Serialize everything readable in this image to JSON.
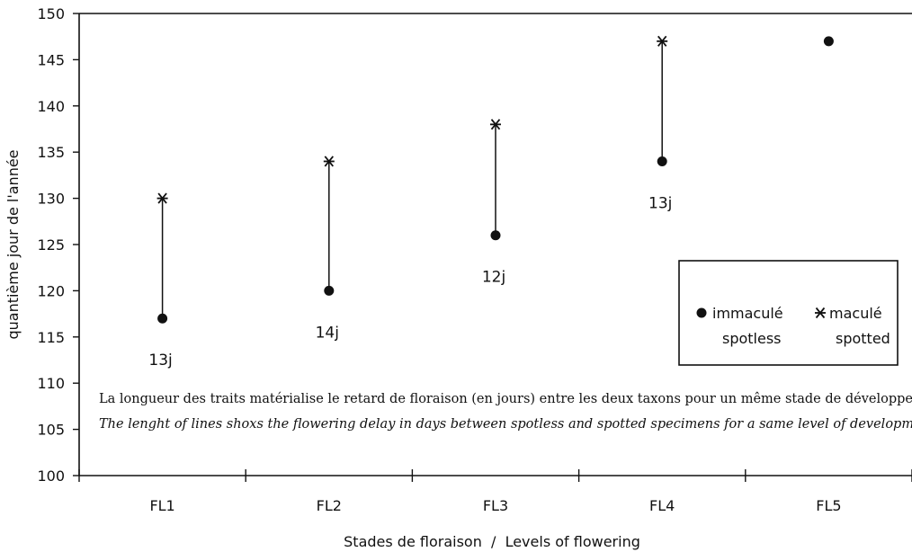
{
  "chart_data": {
    "type": "scatter",
    "title": "",
    "xlabel": "Stades de floraison  /  Levels of flowering",
    "ylabel": "quantième jour de l'année",
    "categories": [
      "FL1",
      "FL2",
      "FL3",
      "FL4",
      "FL5"
    ],
    "ylim": [
      100,
      150
    ],
    "yticks": [
      "100",
      "105",
      "110",
      "115",
      "120",
      "125",
      "130",
      "135",
      "140",
      "145",
      "150"
    ],
    "grid": false,
    "legend_position": "right",
    "series": [
      {
        "name": "immaculé spotless",
        "name_fr": "immaculé",
        "name_en": "spotless",
        "marker": "dot",
        "values": [
          117,
          120,
          126,
          134,
          147
        ]
      },
      {
        "name": "maculé spotted",
        "name_fr": "maculé",
        "name_en": "spotted",
        "marker": "asterisk",
        "values": [
          130,
          134,
          138,
          147,
          null
        ]
      }
    ],
    "delay_labels": [
      "13j",
      "14j",
      "12j",
      "13j",
      ""
    ],
    "annotations": [
      "La longueur des traits matérialise le retard de floraison (en jours) entre les deux taxons pour un même stade de développement",
      "The lenght of lines shoxs the flowering delay in days between spotless and spotted specimens for a same level of development"
    ]
  },
  "legend": {
    "spotless_fr": "immaculé",
    "spotless_en": "spotless",
    "spotted_fr": "maculé",
    "spotted_en": "spotted",
    "dot_icon": "filled-circle",
    "asterisk_icon": "asterisk"
  }
}
